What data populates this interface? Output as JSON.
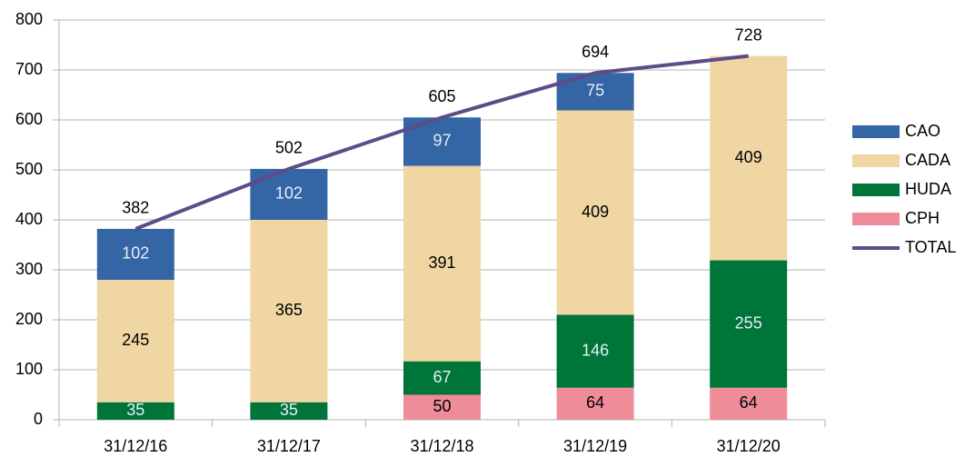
{
  "chart_data": {
    "type": "bar",
    "categories": [
      "31/12/16",
      "31/12/17",
      "31/12/18",
      "31/12/19",
      "31/12/20"
    ],
    "series": [
      {
        "name": "CAO",
        "type": "bar",
        "color": "#3465a4",
        "values": [
          102,
          102,
          97,
          75,
          null
        ]
      },
      {
        "name": "CADA",
        "type": "bar",
        "color": "#efd6a3",
        "values": [
          245,
          365,
          391,
          409,
          409
        ]
      },
      {
        "name": "HUDA",
        "type": "bar",
        "color": "#00753a",
        "values": [
          35,
          35,
          67,
          146,
          255
        ]
      },
      {
        "name": "CPH",
        "type": "bar",
        "color": "#ee8c9a",
        "values": [
          null,
          null,
          50,
          64,
          64
        ]
      },
      {
        "name": "TOTAL",
        "type": "line",
        "color": "#5e4b87",
        "values": [
          382,
          502,
          605,
          694,
          728
        ]
      }
    ],
    "stacked": true,
    "ylim": [
      0,
      800
    ],
    "yticks": [
      0,
      100,
      200,
      300,
      400,
      500,
      600,
      700,
      800
    ],
    "grid": true,
    "legend": "right"
  }
}
